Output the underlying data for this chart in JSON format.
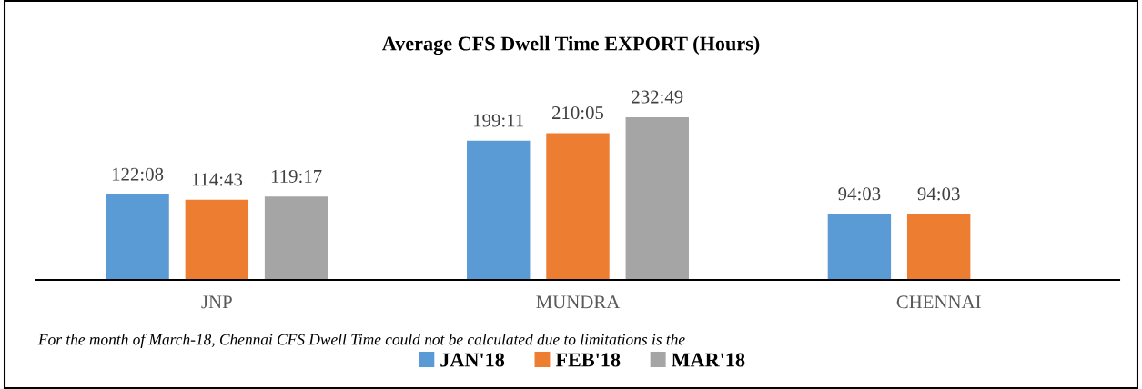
{
  "chart_data": {
    "type": "bar",
    "title": "Average CFS Dwell Time EXPORT (Hours)",
    "categories": [
      "JNP",
      "MUNDRA",
      "CHENNAI"
    ],
    "series": [
      {
        "name": "JAN'18",
        "color": "#5b9bd5",
        "values": [
          122.13,
          199.18,
          94.05
        ],
        "value_labels": [
          "122:08",
          "199:11",
          "94:03"
        ]
      },
      {
        "name": "FEB'18",
        "color": "#ed7d31",
        "values": [
          114.72,
          210.08,
          94.05
        ],
        "value_labels": [
          "114:43",
          "210:05",
          "94:03"
        ]
      },
      {
        "name": "MAR'18",
        "color": "#a5a5a5",
        "values": [
          119.28,
          232.82,
          null
        ],
        "value_labels": [
          "119:17",
          "232:49",
          null
        ]
      }
    ],
    "legend": "bottom",
    "grid": false,
    "annotations": [
      "For the month of March-18, Chennai CFS Dwell Time could not be calculated due to limitations is the"
    ]
  }
}
